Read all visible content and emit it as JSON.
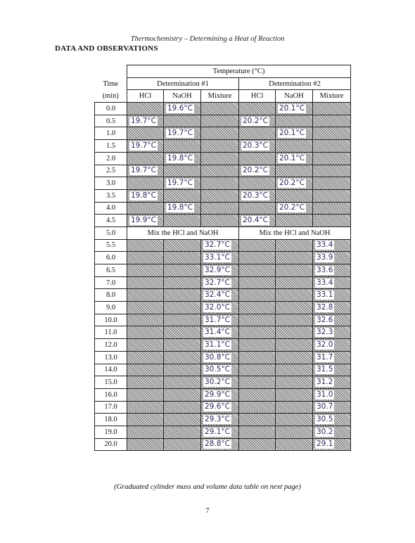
{
  "header": {
    "running_title": "Thermochemistry – Determining a Heat of Reaction",
    "section_title": "DATA AND OBSERVATIONS"
  },
  "table": {
    "temp_header": "Temperature (°C)",
    "time_label_1": "Time",
    "time_label_2": "(min)",
    "det1_label": "Determination #1",
    "det2_label": "Determination #2",
    "col_hcl": "HCl",
    "col_naoh": "NaOH",
    "col_mixture": "Mixture",
    "mix_text_1": "Mix the HCl and NaOH",
    "mix_text_2": "Mix the HCl and NaOH",
    "pre_rows": [
      {
        "time": "0.0",
        "d1_hcl": "",
        "d1_naoh": "19.6°C",
        "d2_hcl": "",
        "d2_naoh": "20.1°C"
      },
      {
        "time": "0.5",
        "d1_hcl": "19.7°C",
        "d1_naoh": "",
        "d2_hcl": "20.2°C",
        "d2_naoh": ""
      },
      {
        "time": "1.0",
        "d1_hcl": "",
        "d1_naoh": "19.7°C",
        "d2_hcl": "",
        "d2_naoh": "20.1°C"
      },
      {
        "time": "1.5",
        "d1_hcl": "19.7°C",
        "d1_naoh": "",
        "d2_hcl": "20.3°C",
        "d2_naoh": ""
      },
      {
        "time": "2.0",
        "d1_hcl": "",
        "d1_naoh": "19.8°C",
        "d2_hcl": "",
        "d2_naoh": "20.1°C"
      },
      {
        "time": "2.5",
        "d1_hcl": "19.7°C",
        "d1_naoh": "",
        "d2_hcl": "20.2°C",
        "d2_naoh": ""
      },
      {
        "time": "3.0",
        "d1_hcl": "",
        "d1_naoh": "19.7°C",
        "d2_hcl": "",
        "d2_naoh": "20.2°C"
      },
      {
        "time": "3.5",
        "d1_hcl": "19.8°C",
        "d1_naoh": "",
        "d2_hcl": "20.3°C",
        "d2_naoh": ""
      },
      {
        "time": "4.0",
        "d1_hcl": "",
        "d1_naoh": "19.8°C",
        "d2_hcl": "",
        "d2_naoh": "20.2°C"
      },
      {
        "time": "4.5",
        "d1_hcl": "19.9°C",
        "d1_naoh": "",
        "d2_hcl": "20.4°C",
        "d2_naoh": ""
      }
    ],
    "mix_time": "5.0",
    "post_rows": [
      {
        "time": "5.5",
        "d1_mix": "32.7°C",
        "d2_mix": "33.4"
      },
      {
        "time": "6.0",
        "d1_mix": "33.1°C",
        "d2_mix": "33.9"
      },
      {
        "time": "6.5",
        "d1_mix": "32.9°C",
        "d2_mix": "33.6"
      },
      {
        "time": "7.0",
        "d1_mix": "32.7°C",
        "d2_mix": "33.4"
      },
      {
        "time": "8.0",
        "d1_mix": "32.4°C",
        "d2_mix": "33.1"
      },
      {
        "time": "9.0",
        "d1_mix": "32.0°C",
        "d2_mix": "32.8"
      },
      {
        "time": "10.0",
        "d1_mix": "31.7°C",
        "d2_mix": "32.6"
      },
      {
        "time": "11.0",
        "d1_mix": "31.4°C",
        "d2_mix": "32.3"
      },
      {
        "time": "12.0",
        "d1_mix": "31.1°C",
        "d2_mix": "32.0"
      },
      {
        "time": "13.0",
        "d1_mix": "30.8°C",
        "d2_mix": "31.7"
      },
      {
        "time": "14.0",
        "d1_mix": "30.5°C",
        "d2_mix": "31.5"
      },
      {
        "time": "15.0",
        "d1_mix": "30.2°C",
        "d2_mix": "31.2"
      },
      {
        "time": "16.0",
        "d1_mix": "29.9°C",
        "d2_mix": "31.0"
      },
      {
        "time": "17.0",
        "d1_mix": "29.6°C",
        "d2_mix": "30.7"
      },
      {
        "time": "18.0",
        "d1_mix": "29.3°C",
        "d2_mix": "30.5"
      },
      {
        "time": "19.0",
        "d1_mix": "29.1°C",
        "d2_mix": "30.2"
      },
      {
        "time": "20.0",
        "d1_mix": "28.8°C",
        "d2_mix": "29.1"
      }
    ]
  },
  "footer": {
    "note": "(Graduated cylinder mass and volume data table on next page)",
    "page_number": "7"
  }
}
